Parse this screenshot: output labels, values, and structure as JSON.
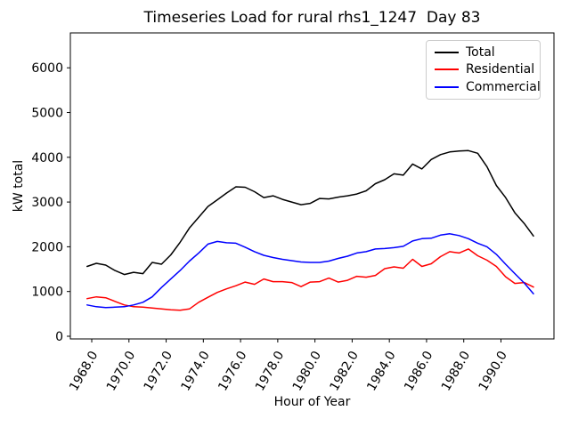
{
  "figure": {
    "background": "#ffffff"
  },
  "chart_data": {
    "type": "line",
    "title": "Timeseries Load for rural rhs1_1247  Day 83",
    "xlabel": "Hour of Year",
    "ylabel": "kW total",
    "grid": false,
    "legend_position": "upper right",
    "xlim": [
      1966.85,
      1992.85
    ],
    "ylim": [
      -60,
      6780
    ],
    "xticks": [
      {
        "value": 1968,
        "label": "1968.0"
      },
      {
        "value": 1970,
        "label": "1970.0"
      },
      {
        "value": 1972,
        "label": "1972.0"
      },
      {
        "value": 1974,
        "label": "1974.0"
      },
      {
        "value": 1976,
        "label": "1976.0"
      },
      {
        "value": 1978,
        "label": "1978.0"
      },
      {
        "value": 1980,
        "label": "1980.0"
      },
      {
        "value": 1982,
        "label": "1982.0"
      },
      {
        "value": 1984,
        "label": "1984.0"
      },
      {
        "value": 1986,
        "label": "1986.0"
      },
      {
        "value": 1988,
        "label": "1988.0"
      },
      {
        "value": 1990,
        "label": "1990.0"
      }
    ],
    "yticks": [
      {
        "value": 0,
        "label": "0"
      },
      {
        "value": 1000,
        "label": "1000"
      },
      {
        "value": 2000,
        "label": "2000"
      },
      {
        "value": 3000,
        "label": "3000"
      },
      {
        "value": 4000,
        "label": "4000"
      },
      {
        "value": 5000,
        "label": "5000"
      },
      {
        "value": 6000,
        "label": "6000"
      }
    ],
    "x": [
      1967.75,
      1968.25,
      1968.75,
      1969.25,
      1969.75,
      1970.25,
      1970.75,
      1971.25,
      1971.75,
      1972.25,
      1972.75,
      1973.25,
      1973.75,
      1974.25,
      1974.75,
      1975.25,
      1975.75,
      1976.25,
      1976.75,
      1977.25,
      1977.75,
      1978.25,
      1978.75,
      1979.25,
      1979.75,
      1980.25,
      1980.75,
      1981.25,
      1981.75,
      1982.25,
      1982.75,
      1983.25,
      1983.75,
      1984.25,
      1984.75,
      1985.25,
      1985.75,
      1986.25,
      1986.75,
      1987.25,
      1987.75,
      1988.25,
      1988.75,
      1989.25,
      1989.75,
      1990.25,
      1990.75,
      1991.25,
      1991.75
    ],
    "series": [
      {
        "name": "Total",
        "color": "#000000",
        "values": [
          1560,
          1630,
          1590,
          1470,
          1380,
          1430,
          1400,
          1650,
          1610,
          1820,
          2100,
          2420,
          2660,
          2900,
          3050,
          3200,
          3340,
          3330,
          3230,
          3100,
          3140,
          3060,
          3000,
          2940,
          2970,
          3080,
          3070,
          3110,
          3140,
          3180,
          3250,
          3410,
          3500,
          3630,
          3600,
          3850,
          3740,
          3950,
          4060,
          4120,
          4140,
          4150,
          4090,
          3790,
          3370,
          3100,
          2760,
          2520,
          2240
        ]
      },
      {
        "name": "Residential",
        "color": "#ff0000",
        "values": [
          840,
          880,
          860,
          780,
          700,
          660,
          650,
          630,
          610,
          590,
          580,
          610,
          760,
          870,
          980,
          1060,
          1130,
          1210,
          1160,
          1280,
          1220,
          1220,
          1200,
          1110,
          1210,
          1220,
          1300,
          1210,
          1250,
          1340,
          1320,
          1360,
          1510,
          1550,
          1520,
          1720,
          1560,
          1620,
          1780,
          1890,
          1860,
          1950,
          1800,
          1700,
          1560,
          1330,
          1180,
          1200,
          1100
        ]
      },
      {
        "name": "Commercial",
        "color": "#0000ff",
        "values": [
          700,
          660,
          640,
          650,
          660,
          700,
          760,
          880,
          1090,
          1280,
          1470,
          1680,
          1860,
          2060,
          2120,
          2090,
          2080,
          1990,
          1890,
          1810,
          1760,
          1720,
          1690,
          1660,
          1650,
          1650,
          1680,
          1740,
          1790,
          1860,
          1890,
          1950,
          1960,
          1980,
          2010,
          2130,
          2180,
          2190,
          2260,
          2290,
          2250,
          2180,
          2080,
          2000,
          1830,
          1610,
          1400,
          1190,
          950
        ]
      }
    ]
  }
}
